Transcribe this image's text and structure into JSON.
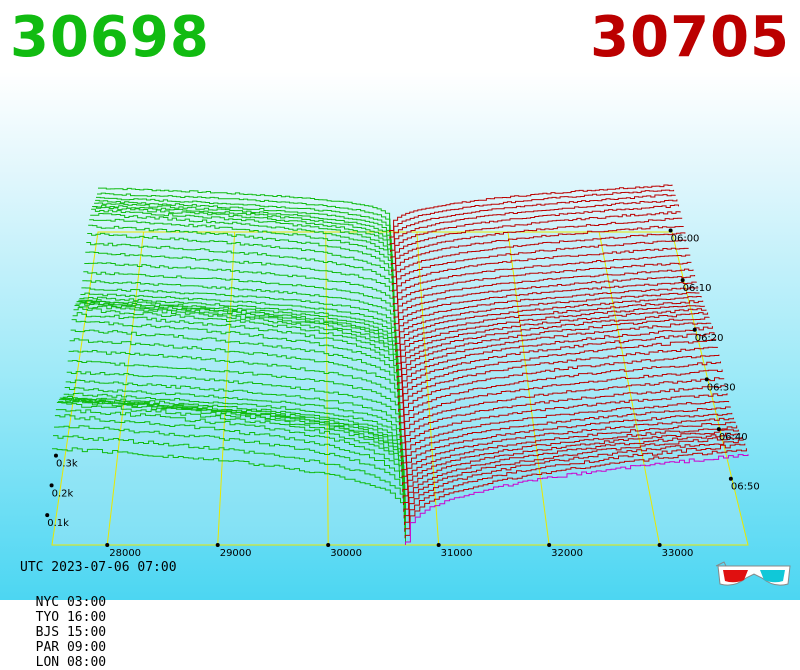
{
  "prices": {
    "bid": "30698",
    "ask": "30705"
  },
  "colors": {
    "bid": "#11bb11",
    "ask": "#bb0000",
    "grid": "#e8e800",
    "ask_front": "#cc00cc"
  },
  "clock": {
    "utc": "UTC 2023-07-06 07:00",
    "zones": [
      {
        "label": "NYC 03:00"
      },
      {
        "label": "TYO 16:00"
      },
      {
        "label": "BJS 15:00"
      },
      {
        "label": "PAR 09:00"
      },
      {
        "label": "LON 08:00"
      }
    ]
  },
  "icons": {
    "anaglyph": "3d-glasses-icon"
  },
  "chart_data": {
    "type": "area",
    "subtype": "3d-order-book-depth",
    "price_ticks": [
      "28000",
      "29000",
      "30000",
      "31000",
      "32000",
      "33000"
    ],
    "depth_ticks": [
      "0.1k",
      "0.2k",
      "0.3k"
    ],
    "time_ticks": [
      "06:00",
      "06:10",
      "06:20",
      "06:30",
      "06:40",
      "06:50"
    ],
    "price_range": [
      27500,
      33800
    ],
    "mid_price": 30700,
    "bid_price": 30698,
    "ask_price": 30705,
    "series": [
      {
        "name": "bids",
        "depth_at_far_price": 0.38,
        "depth_near_mid": 0.05
      },
      {
        "name": "asks",
        "depth_at_far_price": 0.3,
        "depth_near_mid": 0.01
      }
    ]
  }
}
